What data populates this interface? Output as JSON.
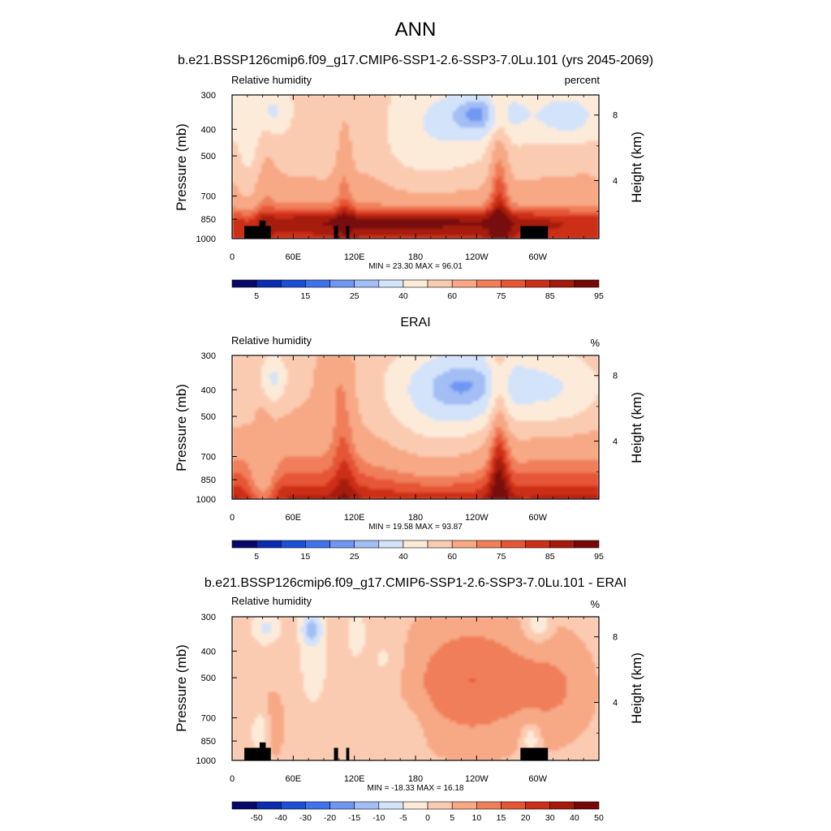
{
  "page": {
    "title": "ANN",
    "subtitle": "b.e21.BSSP126cmip6.f09_g17.CMIP6-SSP1-2.6-SSP3-7.0Lu.101 (yrs 2045-2069)"
  },
  "palettes": {
    "rh": [
      "#08086b",
      "#0a2cb0",
      "#1c4fd6",
      "#3f73ee",
      "#6f97f2",
      "#a3bdf5",
      "#d3e3fa",
      "#fdebd9",
      "#fbcbb1",
      "#f7a884",
      "#f07e5a",
      "#e65534",
      "#cc2f18",
      "#a61a0b",
      "#780808"
    ],
    "diff": [
      "#08086b",
      "#0a2cb0",
      "#1c4fd6",
      "#3f73ee",
      "#6f97f2",
      "#a3bdf5",
      "#d3e3fa",
      "#fdebd9",
      "#fbcbb1",
      "#f7a884",
      "#f07e5a",
      "#e65534",
      "#cc2f18",
      "#a61a0b",
      "#780808"
    ]
  },
  "chart_data": [
    {
      "type": "heatmap",
      "title": "",
      "left_label": "Relative humidity",
      "right_label": "percent",
      "xlabel": "",
      "ylabel": "Pressure (mb)",
      "y2label": "Height (km)",
      "xlim": [
        0,
        360
      ],
      "ylim": [
        1000,
        300
      ],
      "x_ticks": [
        "0",
        "60E",
        "120E",
        "180",
        "120W",
        "60W"
      ],
      "y_ticks": [
        "300",
        "400",
        "500",
        "700",
        "850",
        "1000"
      ],
      "y2_ticks": [
        "8",
        "4"
      ],
      "stats": "MIN = 23.30  MAX = 96.01",
      "min": 23.3,
      "max": 96.01,
      "colorbar_labels": [
        "5",
        "15",
        "25",
        "40",
        "60",
        "75",
        "85",
        "95"
      ],
      "field": "model",
      "terrain_mask": true
    },
    {
      "type": "heatmap",
      "title": "ERAI",
      "left_label": "Relative humidity",
      "right_label": "%",
      "xlabel": "",
      "ylabel": "Pressure (mb)",
      "y2label": "Height (km)",
      "xlim": [
        0,
        360
      ],
      "ylim": [
        1000,
        300
      ],
      "x_ticks": [
        "0",
        "60E",
        "120E",
        "180",
        "120W",
        "60W"
      ],
      "y_ticks": [
        "300",
        "400",
        "500",
        "700",
        "850",
        "1000"
      ],
      "y2_ticks": [
        "8",
        "4"
      ],
      "stats": "MIN = 19.58  MAX = 93.87",
      "min": 19.58,
      "max": 93.87,
      "colorbar_labels": [
        "5",
        "15",
        "25",
        "40",
        "60",
        "75",
        "85",
        "95"
      ],
      "field": "obs",
      "terrain_mask": false
    },
    {
      "type": "heatmap",
      "title": "b.e21.BSSP126cmip6.f09_g17.CMIP6-SSP1-2.6-SSP3-7.0Lu.101 - ERAI",
      "left_label": "Relative humidity",
      "right_label": "%",
      "xlabel": "",
      "ylabel": "Pressure (mb)",
      "y2label": "Height (km)",
      "xlim": [
        0,
        360
      ],
      "ylim": [
        1000,
        300
      ],
      "x_ticks": [
        "0",
        "60E",
        "120E",
        "180",
        "120W",
        "60W"
      ],
      "y_ticks": [
        "300",
        "400",
        "500",
        "700",
        "850",
        "1000"
      ],
      "y2_ticks": [
        "8",
        "4"
      ],
      "stats": "MIN = -18.33  MAX = 16.18",
      "min": -18.33,
      "max": 16.18,
      "colorbar_labels": [
        "-50",
        "-40",
        "-30",
        "-20",
        "-15",
        "-10",
        "-5",
        "0",
        "5",
        "10",
        "15",
        "20",
        "30",
        "40",
        "50"
      ],
      "field": "diff",
      "terrain_mask": true
    }
  ]
}
